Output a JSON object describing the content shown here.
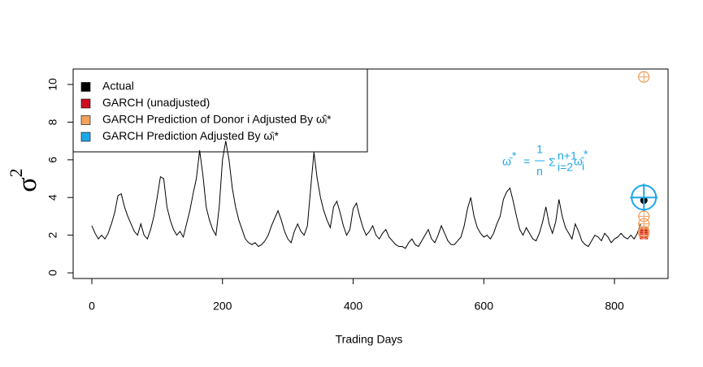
{
  "chart_data": {
    "type": "line",
    "xlabel": "Trading Days",
    "ylabel": "σ",
    "ylabel_sup": "2",
    "xlim": [
      -28.6,
      882
    ],
    "ylim": [
      -0.3,
      10.82
    ],
    "xticks": [
      0,
      200,
      400,
      600,
      800
    ],
    "yticks": [
      0,
      2,
      4,
      6,
      8,
      10
    ],
    "legend": "top-left",
    "series": [
      {
        "name": "Actual",
        "color": "#000000",
        "marker": "line",
        "x": [
          0,
          5,
          10,
          15,
          20,
          25,
          30,
          35,
          40,
          45,
          50,
          55,
          60,
          65,
          70,
          75,
          80,
          85,
          90,
          95,
          100,
          105,
          110,
          115,
          120,
          125,
          130,
          135,
          140,
          145,
          150,
          155,
          160,
          165,
          170,
          175,
          180,
          185,
          190,
          195,
          200,
          205,
          210,
          215,
          220,
          225,
          230,
          235,
          240,
          245,
          250,
          255,
          260,
          265,
          270,
          275,
          280,
          285,
          290,
          295,
          300,
          305,
          310,
          315,
          320,
          325,
          330,
          335,
          340,
          345,
          350,
          355,
          360,
          365,
          370,
          375,
          380,
          385,
          390,
          395,
          400,
          405,
          410,
          415,
          420,
          425,
          430,
          435,
          440,
          445,
          450,
          455,
          460,
          465,
          470,
          475,
          480,
          485,
          490,
          495,
          500,
          505,
          510,
          515,
          520,
          525,
          530,
          535,
          540,
          545,
          550,
          555,
          560,
          565,
          570,
          575,
          580,
          585,
          590,
          595,
          600,
          605,
          610,
          615,
          620,
          625,
          630,
          635,
          640,
          645,
          650,
          655,
          660,
          665,
          670,
          675,
          680,
          685,
          690,
          695,
          700,
          705,
          710,
          715,
          720,
          725,
          730,
          735,
          740,
          745,
          750,
          755,
          760,
          765,
          770,
          775,
          780,
          785,
          790,
          795,
          800,
          805,
          810,
          815,
          820,
          825,
          830,
          835,
          840
        ],
        "values": [
          2.5,
          2.1,
          1.8,
          2.0,
          1.8,
          2.1,
          2.6,
          3.2,
          4.1,
          4.2,
          3.5,
          3.0,
          2.6,
          2.2,
          2.0,
          2.6,
          2.0,
          1.8,
          2.3,
          3.0,
          4.0,
          5.1,
          5.0,
          3.5,
          2.8,
          2.3,
          2.0,
          2.2,
          1.9,
          2.6,
          3.3,
          4.2,
          5.0,
          6.5,
          5.2,
          3.5,
          2.8,
          2.3,
          2.0,
          3.5,
          6.0,
          7.0,
          6.0,
          4.5,
          3.5,
          2.8,
          2.3,
          1.8,
          1.6,
          1.5,
          1.6,
          1.4,
          1.5,
          1.7,
          2.0,
          2.5,
          2.9,
          3.3,
          2.8,
          2.2,
          1.8,
          1.6,
          2.2,
          2.6,
          2.2,
          2.0,
          2.5,
          4.5,
          6.4,
          5.0,
          4.0,
          3.3,
          2.8,
          2.4,
          3.5,
          3.8,
          3.2,
          2.5,
          2.0,
          2.3,
          3.4,
          3.7,
          3.0,
          2.4,
          2.0,
          2.2,
          2.5,
          2.0,
          1.8,
          2.1,
          2.3,
          1.9,
          1.7,
          1.5,
          1.4,
          1.4,
          1.3,
          1.6,
          1.8,
          1.5,
          1.4,
          1.7,
          2.0,
          2.3,
          1.8,
          1.6,
          2.0,
          2.5,
          2.1,
          1.7,
          1.5,
          1.5,
          1.7,
          1.9,
          2.5,
          3.4,
          4.0,
          3.0,
          2.4,
          2.1,
          1.9,
          2.0,
          1.8,
          2.1,
          2.6,
          3.0,
          3.9,
          4.3,
          4.5,
          3.8,
          3.0,
          2.3,
          2.0,
          2.4,
          2.1,
          1.8,
          1.7,
          2.1,
          2.7,
          3.5,
          2.6,
          2.1,
          2.7,
          3.9,
          3.0,
          2.4,
          2.1,
          1.8,
          2.6,
          2.2,
          1.7,
          1.5,
          1.4,
          1.7,
          2.0,
          1.9,
          1.7,
          2.1,
          1.9,
          1.6,
          1.8,
          1.9,
          2.1,
          1.9,
          1.8,
          2.0,
          1.8,
          2.1,
          2.6
        ],
        "point_x": [
          845
        ],
        "point_values": [
          3.85
        ]
      },
      {
        "name": "GARCH (unadjusted)",
        "color": "#cc1020",
        "marker": "square",
        "x": [
          845,
          845,
          845
        ],
        "values": [
          2.2,
          2.1,
          2.0
        ]
      },
      {
        "name": "GARCH Prediction of Donor i Adjusted By ω̂ᵢ*",
        "color": "#f2a05c",
        "marker": "circle-plus",
        "x": [
          845,
          845,
          845,
          845,
          845
        ],
        "values": [
          10.4,
          3.0,
          2.6,
          2.2,
          2.1
        ]
      },
      {
        "name": "GARCH Prediction Adjusted By ω̄ᵢ*",
        "color": "#1ea7e8",
        "marker": "target",
        "x": [
          845
        ],
        "values": [
          4.0
        ]
      }
    ],
    "annotation": {
      "color": "#1ea7e8",
      "lhs": "ω̄",
      "lhs_sup": "*",
      "eq": "=",
      "num": "1",
      "den": "n",
      "sum": "Σ",
      "upper": "n+1",
      "lower": "i=2",
      "term": "ω̂",
      "term_sub": "i",
      "term_sup": "*"
    }
  }
}
